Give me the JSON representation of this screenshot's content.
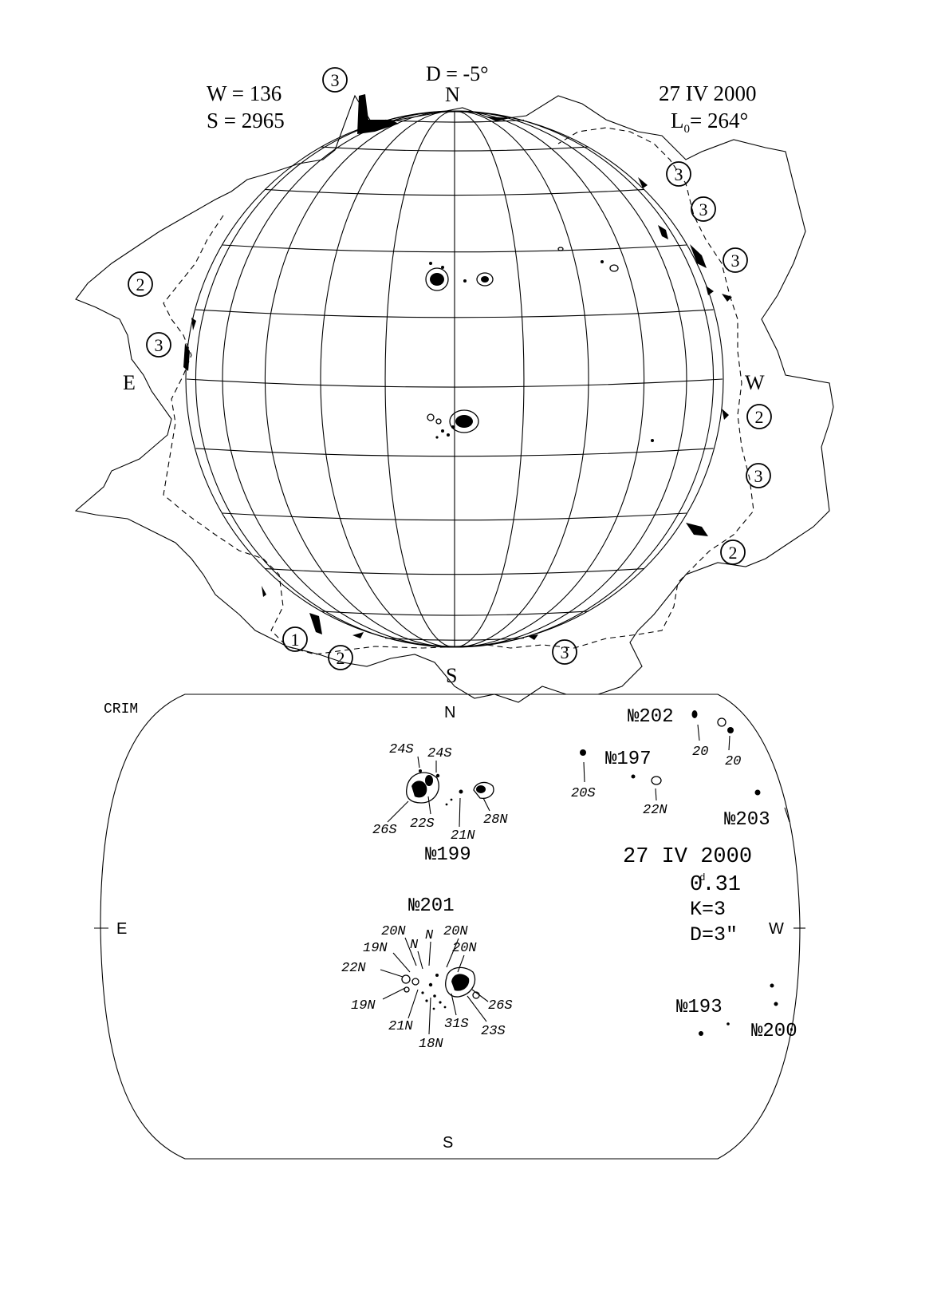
{
  "top_map": {
    "D": "D = -5°",
    "N": "N",
    "S": "S",
    "E": "E",
    "W": "W",
    "wolf": "W = 136",
    "area": "S = 2965",
    "date": "27 IV 2000",
    "L0": "L",
    "L0_sub": "0",
    "L0_val": "= 264°",
    "markers": [
      "3",
      "3",
      "3",
      "3",
      "2",
      "3",
      "2",
      "3",
      "2",
      "1",
      "2",
      "3"
    ]
  },
  "bottom_map": {
    "source": "CRIM",
    "N": "N",
    "S": "S",
    "E": "E",
    "W": "W",
    "date": "27 IV 2000",
    "time": "0",
    "time_sup": "d",
    "time_rest": ".31",
    "K": "K=3",
    "D": "D=3\"",
    "groups": [
      "№202",
      "№197",
      "№203",
      "№199",
      "№201",
      "№193",
      "№200"
    ],
    "labels": [
      "24S",
      "24S",
      "26S",
      "22S",
      "21N",
      "28N",
      "20",
      "20",
      "20S",
      "22N",
      "20N",
      "N",
      "20N",
      "19N",
      "N",
      "20N",
      "22N",
      "19N",
      "21N",
      "18N",
      "31S",
      "23S",
      "26S"
    ]
  }
}
